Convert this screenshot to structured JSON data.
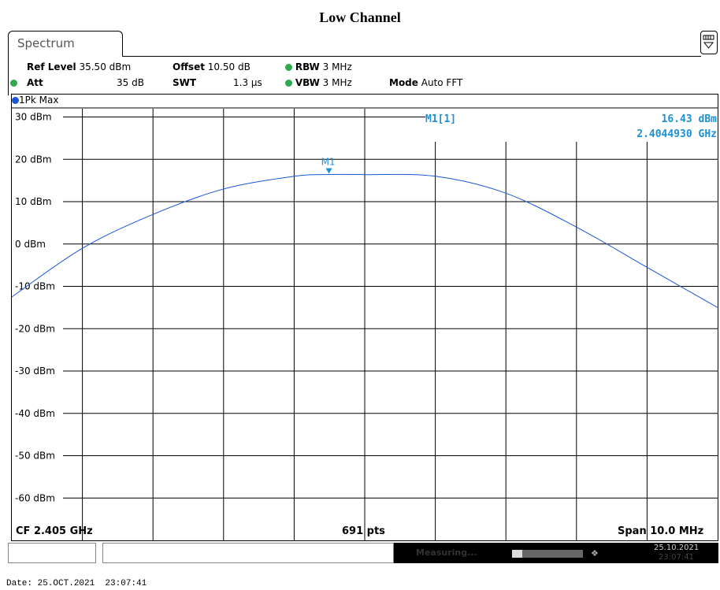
{
  "page_title": "Low Channel",
  "tab": {
    "label": "Spectrum"
  },
  "params": {
    "ref_level_key": "Ref Level",
    "ref_level_val": "35.50 dBm",
    "offset_key": "Offset",
    "offset_val": "10.50 dB",
    "rbw_key": "RBW",
    "rbw_val": "3 MHz",
    "att_key": "Att",
    "att_val": "35 dB",
    "swt_key": "SWT",
    "swt_val": "1.3 µs",
    "vbw_key": "VBW",
    "vbw_val": "3 MHz",
    "mode_key": "Mode",
    "mode_val": "Auto FFT"
  },
  "trace": {
    "label": "1Pk Max",
    "color": "#1a56d6"
  },
  "marker": {
    "name": "M1",
    "readout_label": "M1[1]",
    "level": "16.43 dBm",
    "freq": "2.4044930 GHz",
    "color": "#1e90d6"
  },
  "y_axis": {
    "labels": [
      "30 dBm",
      "20 dBm",
      "10 dBm",
      "0 dBm",
      "-10 dBm",
      "-20 dBm",
      "-30 dBm",
      "-40 dBm",
      "-50 dBm",
      "-60 dBm"
    ]
  },
  "bottom": {
    "cf": "CF 2.405 GHz",
    "pts": "691 pts",
    "span": "Span 10.0 MHz"
  },
  "status": {
    "measuring": "Measuring...",
    "date": "25.10.2021",
    "time": "23:07:41"
  },
  "footer": {
    "date_line": "Date: 25.OCT.2021  23:07:41"
  },
  "chart_data": {
    "type": "line",
    "title": "Low Channel",
    "xlabel": "",
    "ylabel": "",
    "x_center_ghz": 2.405,
    "x_span_mhz": 10.0,
    "xlim_ghz": [
      2.4,
      2.41
    ],
    "ylim": [
      -70,
      35.5
    ],
    "grid": true,
    "series": [
      {
        "x_ghz": [
          2.4,
          2.401,
          2.402,
          2.403,
          2.404,
          2.4045,
          2.405,
          2.406,
          2.407,
          2.408,
          2.409,
          2.41
        ],
        "values": [
          -12.5,
          -1.0,
          7.0,
          13.0,
          16.0,
          16.43,
          16.4,
          16.0,
          12.0,
          4.0,
          -5.5,
          -15.0
        ]
      }
    ],
    "marker": {
      "name": "M1",
      "x_ghz": 2.404493,
      "value": 16.43
    }
  }
}
